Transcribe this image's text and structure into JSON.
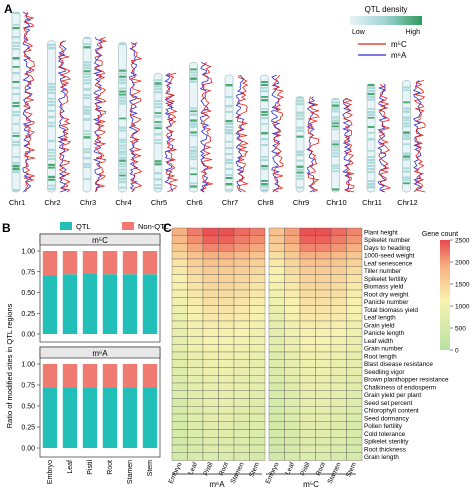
{
  "colors": {
    "density_low": "#e8f4f8",
    "density_mid": "#9fd3d3",
    "density_high": "#2e9a5a",
    "m5c_line": "#e2231a",
    "m6a_line": "#2a2ad4",
    "qtl_bar": "#22bfb8",
    "nonqtl_bar": "#f07a72",
    "heat_low": "#b6e3a4",
    "heat_mid": "#f8f2b0",
    "heat_high": "#e8484f"
  },
  "panel_a": {
    "label": "A",
    "legend_title": "QTL density",
    "legend_low": "Low",
    "legend_high": "High",
    "line_m5c": "m⁵C",
    "line_m6a": "m⁶A",
    "chromosomes": [
      "Chr1",
      "Chr2",
      "Chr3",
      "Chr4",
      "Chr5",
      "Chr6",
      "Chr7",
      "Chr8",
      "Chr9",
      "Chr10",
      "Chr11",
      "Chr12"
    ],
    "relative_lengths": [
      1.0,
      0.84,
      0.86,
      0.83,
      0.66,
      0.72,
      0.65,
      0.65,
      0.53,
      0.52,
      0.6,
      0.62
    ]
  },
  "panel_b": {
    "label": "B",
    "legend": [
      "QTL",
      "Non-QTL"
    ],
    "ylabel": "Ratio of modified sites in QTL regions",
    "charts": [
      {
        "title": "m⁵C"
      },
      {
        "title": "m⁶A"
      }
    ],
    "yticks": [
      "0.00",
      "0.25",
      "0.50",
      "0.75",
      "1.00"
    ],
    "xticks": [
      "Embryo",
      "Leaf",
      "Pistil",
      "Root",
      "Stamen",
      "Stem"
    ]
  },
  "panel_c": {
    "label": "C",
    "colorbar_title": "Gene count",
    "colorbar_ticks": [
      "2500",
      "2000",
      "1500",
      "1000",
      "500",
      "0"
    ],
    "group_labels": [
      "m⁶A",
      "m⁵C"
    ]
  },
  "chart_data": [
    {
      "type": "bar",
      "title": "m⁵C",
      "categories": [
        "Embryo",
        "Leaf",
        "Pistil",
        "Root",
        "Stamen",
        "Stem"
      ],
      "series": [
        {
          "name": "QTL",
          "values": [
            0.71,
            0.72,
            0.73,
            0.72,
            0.72,
            0.72
          ]
        },
        {
          "name": "Non-QTL",
          "values": [
            0.29,
            0.28,
            0.27,
            0.28,
            0.28,
            0.28
          ]
        }
      ],
      "ylabel": "Ratio of modified sites in QTL regions",
      "ylim": [
        0,
        1
      ],
      "stacked": true,
      "legend": "top"
    },
    {
      "type": "bar",
      "title": "m⁶A",
      "categories": [
        "Embryo",
        "Leaf",
        "Pistil",
        "Root",
        "Stamen",
        "Stem"
      ],
      "series": [
        {
          "name": "QTL",
          "values": [
            0.72,
            0.72,
            0.72,
            0.72,
            0.72,
            0.72
          ]
        },
        {
          "name": "Non-QTL",
          "values": [
            0.28,
            0.28,
            0.28,
            0.28,
            0.28,
            0.28
          ]
        }
      ],
      "ylabel": "Ratio of modified sites in QTL regions",
      "ylim": [
        0,
        1
      ],
      "stacked": true,
      "legend": "top"
    },
    {
      "type": "heatmap",
      "x": [
        "Embryo",
        "Leaf",
        "Pistil",
        "Root",
        "Stamen",
        "Stem",
        "Embryo",
        "Leaf",
        "Pistil",
        "Root",
        "Stamen",
        "Stem"
      ],
      "x_groups": [
        "m⁶A",
        "m⁶A",
        "m⁶A",
        "m⁶A",
        "m⁶A",
        "m⁶A",
        "m⁵C",
        "m⁵C",
        "m⁵C",
        "m⁵C",
        "m⁵C",
        "m⁵C"
      ],
      "y": [
        "Plant height",
        "Spikelet number",
        "Days to heading",
        "1000-seed weight",
        "Leaf senescence",
        "Tiller number",
        "Spikelet fertility",
        "Biomass yield",
        "Root dry weight",
        "Panicle number",
        "Total biomass yield",
        "Leaf length",
        "Grain yield",
        "Panicle length",
        "Leaf width",
        "Grain number",
        "Root length",
        "Blast disease resistance",
        "Seedling vigor",
        "Brown planthopper resistance",
        "Chalkiness of endosperm",
        "Grain yield per plant",
        "Seed set percent",
        "Chlorophyll content",
        "Seed dormancy",
        "Pollen fertility",
        "Cold tolerance",
        "Spikelet sterility",
        "Root thickness",
        "Grain length"
      ],
      "values": [
        [
          1900,
          2200,
          2450,
          2450,
          2300,
          2200,
          1700,
          2000,
          2450,
          2450,
          2300,
          2150
        ],
        [
          1800,
          2100,
          2350,
          2350,
          2200,
          2100,
          1650,
          1950,
          2350,
          2350,
          2200,
          2050
        ],
        [
          1650,
          1950,
          2150,
          2150,
          2050,
          1950,
          1550,
          1800,
          2150,
          2150,
          2050,
          1900
        ],
        [
          1450,
          1700,
          1900,
          1900,
          1800,
          1700,
          1350,
          1600,
          1900,
          1900,
          1800,
          1650
        ],
        [
          1300,
          1550,
          1700,
          1700,
          1650,
          1550,
          1250,
          1450,
          1700,
          1700,
          1650,
          1500
        ],
        [
          1250,
          1450,
          1600,
          1600,
          1550,
          1450,
          1150,
          1400,
          1600,
          1600,
          1550,
          1400
        ],
        [
          1150,
          1350,
          1500,
          1500,
          1450,
          1350,
          1100,
          1300,
          1500,
          1500,
          1450,
          1300
        ],
        [
          1100,
          1300,
          1450,
          1450,
          1400,
          1300,
          1050,
          1250,
          1450,
          1450,
          1400,
          1250
        ],
        [
          1050,
          1250,
          1400,
          1400,
          1350,
          1250,
          1000,
          1200,
          1400,
          1400,
          1350,
          1200
        ],
        [
          1000,
          1200,
          1350,
          1350,
          1300,
          1200,
          950,
          1150,
          1350,
          1350,
          1300,
          1150
        ],
        [
          950,
          1150,
          1300,
          1300,
          1250,
          1150,
          900,
          1100,
          1300,
          1300,
          1250,
          1100
        ],
        [
          900,
          1100,
          1250,
          1250,
          1200,
          1100,
          850,
          1050,
          1250,
          1250,
          1200,
          1050
        ],
        [
          900,
          1050,
          1200,
          1200,
          1150,
          1050,
          850,
          1000,
          1200,
          1200,
          1150,
          1000
        ],
        [
          850,
          1000,
          1150,
          1150,
          1100,
          1000,
          800,
          950,
          1150,
          1150,
          1100,
          950
        ],
        [
          800,
          950,
          1100,
          1100,
          1050,
          950,
          750,
          900,
          1100,
          1100,
          1050,
          900
        ],
        [
          800,
          950,
          1050,
          1050,
          1000,
          950,
          750,
          900,
          1050,
          1050,
          1000,
          900
        ],
        [
          750,
          900,
          1000,
          1000,
          950,
          900,
          700,
          850,
          1000,
          1000,
          950,
          850
        ],
        [
          750,
          850,
          950,
          950,
          900,
          850,
          700,
          800,
          950,
          950,
          900,
          800
        ],
        [
          700,
          850,
          950,
          950,
          900,
          850,
          650,
          800,
          950,
          950,
          900,
          800
        ],
        [
          700,
          800,
          900,
          900,
          850,
          800,
          650,
          750,
          900,
          900,
          850,
          750
        ],
        [
          650,
          800,
          900,
          900,
          850,
          800,
          600,
          750,
          900,
          900,
          850,
          750
        ],
        [
          650,
          750,
          850,
          850,
          800,
          750,
          600,
          700,
          850,
          850,
          800,
          700
        ],
        [
          600,
          750,
          850,
          850,
          800,
          750,
          550,
          700,
          850,
          850,
          800,
          700
        ],
        [
          600,
          700,
          800,
          800,
          750,
          700,
          550,
          650,
          800,
          800,
          750,
          650
        ],
        [
          550,
          700,
          800,
          800,
          750,
          700,
          500,
          650,
          800,
          800,
          750,
          650
        ],
        [
          550,
          650,
          750,
          750,
          700,
          650,
          500,
          600,
          750,
          750,
          700,
          600
        ],
        [
          550,
          650,
          750,
          750,
          700,
          650,
          500,
          600,
          750,
          750,
          700,
          600
        ],
        [
          500,
          600,
          700,
          700,
          650,
          600,
          450,
          550,
          700,
          700,
          650,
          550
        ],
        [
          500,
          600,
          700,
          700,
          650,
          600,
          450,
          550,
          700,
          700,
          650,
          550
        ],
        [
          500,
          600,
          650,
          650,
          600,
          550,
          450,
          550,
          650,
          650,
          600,
          550
        ]
      ],
      "colorbar_range": [
        0,
        2500
      ]
    }
  ]
}
